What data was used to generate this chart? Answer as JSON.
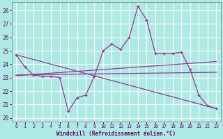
{
  "xlabel": "Windchill (Refroidissement éolien,°C)",
  "xlim": [
    -0.5,
    23.5
  ],
  "ylim": [
    19.75,
    28.6
  ],
  "yticks": [
    20,
    21,
    22,
    23,
    24,
    25,
    26,
    27,
    28
  ],
  "xticks": [
    0,
    1,
    2,
    3,
    4,
    5,
    6,
    7,
    8,
    9,
    10,
    11,
    12,
    13,
    14,
    15,
    16,
    17,
    18,
    19,
    20,
    21,
    22,
    23
  ],
  "bg_color": "#aeeae4",
  "grid_color": "#b0e8e2",
  "line_color": "#993399",
  "curve_main": {
    "x": [
      0,
      1,
      2,
      3,
      4,
      5,
      6,
      7,
      8,
      9,
      10,
      11,
      12,
      13,
      14,
      15,
      16,
      17,
      18,
      19,
      20,
      21,
      22,
      23
    ],
    "y": [
      24.7,
      23.8,
      23.2,
      23.1,
      23.1,
      23.0,
      20.5,
      21.5,
      21.7,
      23.1,
      25.0,
      25.5,
      25.1,
      26.0,
      28.3,
      27.3,
      24.8,
      24.8,
      24.8,
      24.9,
      23.6,
      21.7,
      20.9,
      20.7
    ]
  },
  "curve_diag_down": {
    "x": [
      0,
      23
    ],
    "y": [
      24.7,
      20.7
    ]
  },
  "curve_slightly_up": {
    "x": [
      0,
      23
    ],
    "y": [
      23.15,
      24.2
    ]
  },
  "curve_flat": {
    "x": [
      0,
      23
    ],
    "y": [
      23.2,
      23.4
    ]
  }
}
